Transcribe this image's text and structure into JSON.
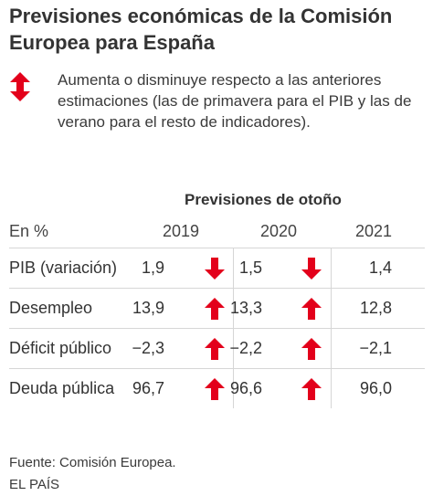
{
  "title": "Previsiones económicas de la Comisión Europea para España",
  "legend": {
    "icon": "up-down-arrow-icon",
    "text": "Aumenta o disminuye respecto a las anteriores estimaciones (las de primavera para el PIB y las de verano para el resto de indicadores)."
  },
  "colors": {
    "arrow": "#e3001b",
    "text": "#333333",
    "rule": "#d6d6d6"
  },
  "chart_data": {
    "type": "table",
    "group_header": "Previsiones de otoño",
    "unit_header": "En %",
    "columns": [
      "2019",
      "2020",
      "2021"
    ],
    "rows": [
      {
        "label": "PIB (variación)",
        "values": [
          "1,9",
          "1,5",
          "1,4"
        ],
        "revisions": [
          "down",
          "down",
          null
        ]
      },
      {
        "label": "Desempleo",
        "values": [
          "13,9",
          "13,3",
          "12,8"
        ],
        "revisions": [
          "up",
          "up",
          null
        ]
      },
      {
        "label": "Déficit público",
        "values": [
          "−2,3",
          "−2,2",
          "−2,1"
        ],
        "revisions": [
          "up",
          "up",
          null
        ]
      },
      {
        "label": "Deuda pública",
        "values": [
          "96,7",
          "96,6",
          "96,0"
        ],
        "revisions": [
          "up",
          "up",
          null
        ]
      }
    ]
  },
  "footer": {
    "source": "Fuente: Comisión Europea.",
    "brand": "EL PAÍS"
  }
}
